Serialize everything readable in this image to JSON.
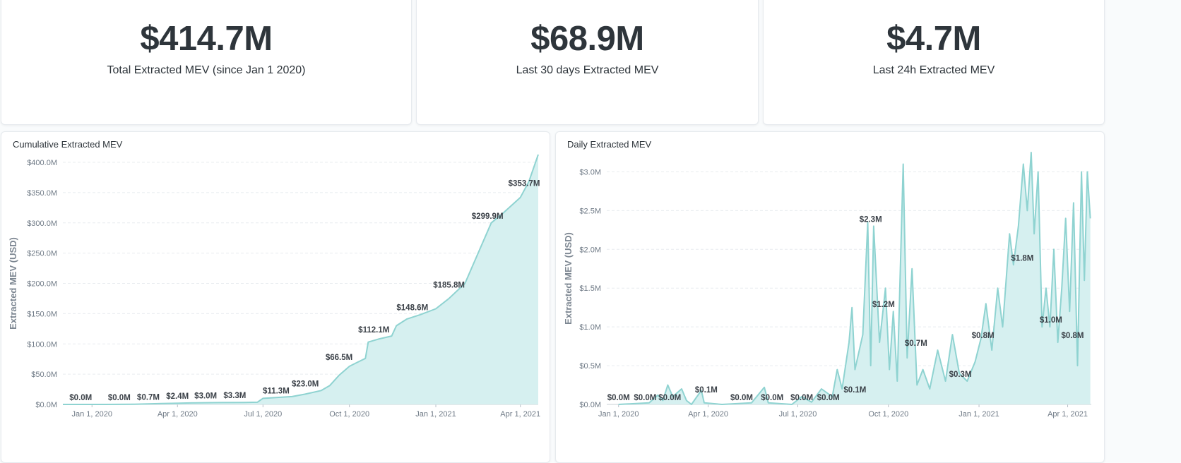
{
  "stats": [
    {
      "value": "$414.7M",
      "label": "Total Extracted MEV (since Jan 1 2020)"
    },
    {
      "value": "$68.9M",
      "label": "Last 30 days Extracted MEV"
    },
    {
      "value": "$4.7M",
      "label": "Last 24h Extracted MEV"
    }
  ],
  "colors": {
    "line": "#8fd3d1",
    "fill": "#d6f0f0",
    "grid": "#e8ecef",
    "text": "#2e353b"
  },
  "chart_data": [
    {
      "type": "area",
      "title": "Cumulative Extracted MEV",
      "xlabel": "",
      "ylabel": "Extracted MEV (USD)",
      "x_ticks": [
        "Jan 1, 2020",
        "Apr 1, 2020",
        "Jul 1, 2020",
        "Oct 1, 2020",
        "Jan 1, 2021",
        "Apr 1, 2021"
      ],
      "y_ticks": [
        "$0.0M",
        "$50.0M",
        "$100.0M",
        "$150.0M",
        "$200.0M",
        "$250.0M",
        "$300.0M",
        "$350.0M",
        "$400.0M"
      ],
      "ylim": [
        0,
        400
      ],
      "grid": true,
      "series": [
        {
          "name": "",
          "points": [
            [
              "2019-12-01",
              0
            ],
            [
              "2020-01-15",
              0.05
            ],
            [
              "2020-02-15",
              0.4
            ],
            [
              "2020-03-15",
              1.5
            ],
            [
              "2020-04-15",
              2.5
            ],
            [
              "2020-05-15",
              3.0
            ],
            [
              "2020-06-10",
              3.2
            ],
            [
              "2020-06-25",
              3.6
            ],
            [
              "2020-07-01",
              10
            ],
            [
              "2020-07-15",
              11.3
            ],
            [
              "2020-08-01",
              13
            ],
            [
              "2020-08-15",
              17
            ],
            [
              "2020-09-01",
              23
            ],
            [
              "2020-09-10",
              31
            ],
            [
              "2020-09-20",
              48
            ],
            [
              "2020-10-01",
              63
            ],
            [
              "2020-10-10",
              70
            ],
            [
              "2020-10-18",
              76
            ],
            [
              "2020-10-21",
              103
            ],
            [
              "2020-11-01",
              108
            ],
            [
              "2020-11-15",
              113
            ],
            [
              "2020-11-20",
              130
            ],
            [
              "2020-12-01",
              141
            ],
            [
              "2020-12-15",
              148
            ],
            [
              "2021-01-01",
              158
            ],
            [
              "2021-01-15",
              175
            ],
            [
              "2021-02-01",
              200
            ],
            [
              "2021-02-15",
              250
            ],
            [
              "2021-03-01",
              300
            ],
            [
              "2021-03-15",
              318
            ],
            [
              "2021-04-01",
              342
            ],
            [
              "2021-04-10",
              368
            ],
            [
              "2021-04-20",
              413
            ]
          ]
        }
      ],
      "data_labels": [
        {
          "x": "2019-12-20",
          "y": 0.0,
          "text": "$0.0M"
        },
        {
          "x": "2020-01-30",
          "y": 0.0,
          "text": "$0.0M"
        },
        {
          "x": "2020-03-01",
          "y": 0.7,
          "text": "$0.7M"
        },
        {
          "x": "2020-04-01",
          "y": 2.4,
          "text": "$2.4M"
        },
        {
          "x": "2020-05-01",
          "y": 3.0,
          "text": "$3.0M"
        },
        {
          "x": "2020-06-01",
          "y": 3.3,
          "text": "$3.3M"
        },
        {
          "x": "2020-07-15",
          "y": 11.3,
          "text": "$11.3M"
        },
        {
          "x": "2020-08-15",
          "y": 23.0,
          "text": "$23.0M"
        },
        {
          "x": "2020-09-20",
          "y": 66.5,
          "text": "$66.5M"
        },
        {
          "x": "2020-10-27",
          "y": 112.1,
          "text": "$112.1M"
        },
        {
          "x": "2020-12-07",
          "y": 148.6,
          "text": "$148.6M"
        },
        {
          "x": "2021-01-15",
          "y": 185.8,
          "text": "$185.8M"
        },
        {
          "x": "2021-02-25",
          "y": 299.9,
          "text": "$299.9M"
        },
        {
          "x": "2021-04-05",
          "y": 353.7,
          "text": "$353.7M"
        }
      ]
    },
    {
      "type": "area",
      "title": "Daily Extracted MEV",
      "xlabel": "",
      "ylabel": "Extracted MEV (USD)",
      "x_ticks": [
        "Jan 1, 2020",
        "Apr 1, 2020",
        "Jul 1, 2020",
        "Oct 1, 2020",
        "Jan 1, 2021",
        "Apr 1, 2021"
      ],
      "y_ticks": [
        "$0.0M",
        "$0.5M",
        "$1.0M",
        "$1.5M",
        "$2.0M",
        "$2.5M",
        "$3.0M"
      ],
      "ylim": [
        0,
        3.25
      ],
      "grid": true,
      "series": [
        {
          "name": "",
          "points": [
            [
              "2020-01-01",
              0.0
            ],
            [
              "2020-02-01",
              0.02
            ],
            [
              "2020-02-10",
              0.12
            ],
            [
              "2020-02-15",
              0.05
            ],
            [
              "2020-02-20",
              0.25
            ],
            [
              "2020-02-25",
              0.1
            ],
            [
              "2020-03-05",
              0.2
            ],
            [
              "2020-03-10",
              0.05
            ],
            [
              "2020-03-15",
              0.0
            ],
            [
              "2020-03-25",
              0.18
            ],
            [
              "2020-03-28",
              0.02
            ],
            [
              "2020-04-15",
              0.0
            ],
            [
              "2020-05-15",
              0.02
            ],
            [
              "2020-05-28",
              0.22
            ],
            [
              "2020-06-01",
              0.02
            ],
            [
              "2020-06-25",
              0.0
            ],
            [
              "2020-07-05",
              0.1
            ],
            [
              "2020-07-15",
              0.03
            ],
            [
              "2020-07-25",
              0.2
            ],
            [
              "2020-08-05",
              0.1
            ],
            [
              "2020-08-10",
              0.45
            ],
            [
              "2020-08-15",
              0.2
            ],
            [
              "2020-08-22",
              0.8
            ],
            [
              "2020-08-25",
              1.25
            ],
            [
              "2020-08-28",
              0.45
            ],
            [
              "2020-09-05",
              0.9
            ],
            [
              "2020-09-10",
              2.35
            ],
            [
              "2020-09-13",
              0.5
            ],
            [
              "2020-09-16",
              2.3
            ],
            [
              "2020-09-22",
              0.8
            ],
            [
              "2020-09-28",
              1.5
            ],
            [
              "2020-10-02",
              0.45
            ],
            [
              "2020-10-06",
              1.2
            ],
            [
              "2020-10-10",
              0.3
            ],
            [
              "2020-10-16",
              3.1
            ],
            [
              "2020-10-20",
              0.6
            ],
            [
              "2020-10-25",
              1.75
            ],
            [
              "2020-10-30",
              0.25
            ],
            [
              "2020-11-05",
              0.45
            ],
            [
              "2020-11-12",
              0.2
            ],
            [
              "2020-11-20",
              0.7
            ],
            [
              "2020-11-28",
              0.3
            ],
            [
              "2020-12-05",
              0.9
            ],
            [
              "2020-12-12",
              0.4
            ],
            [
              "2020-12-20",
              0.3
            ],
            [
              "2020-12-28",
              0.55
            ],
            [
              "2021-01-03",
              0.85
            ],
            [
              "2021-01-08",
              1.3
            ],
            [
              "2021-01-14",
              0.7
            ],
            [
              "2021-01-20",
              1.5
            ],
            [
              "2021-01-25",
              1.0
            ],
            [
              "2021-02-01",
              2.2
            ],
            [
              "2021-02-05",
              1.8
            ],
            [
              "2021-02-10",
              2.3
            ],
            [
              "2021-02-15",
              3.1
            ],
            [
              "2021-02-19",
              2.5
            ],
            [
              "2021-02-23",
              3.25
            ],
            [
              "2021-02-26",
              2.2
            ],
            [
              "2021-03-02",
              3.0
            ],
            [
              "2021-03-06",
              1.0
            ],
            [
              "2021-03-10",
              1.5
            ],
            [
              "2021-03-14",
              1.0
            ],
            [
              "2021-03-18",
              2.0
            ],
            [
              "2021-03-22",
              0.8
            ],
            [
              "2021-03-26",
              1.5
            ],
            [
              "2021-03-30",
              2.4
            ],
            [
              "2021-04-03",
              1.2
            ],
            [
              "2021-04-07",
              2.6
            ],
            [
              "2021-04-11",
              0.5
            ],
            [
              "2021-04-15",
              3.0
            ],
            [
              "2021-04-18",
              1.6
            ],
            [
              "2021-04-21",
              3.0
            ],
            [
              "2021-04-24",
              2.4
            ]
          ]
        }
      ],
      "data_labels": [
        {
          "x": "2020-01-01",
          "y": 0.0,
          "text": "$0.0M"
        },
        {
          "x": "2020-01-28",
          "y": 0.0,
          "text": "$0.0M"
        },
        {
          "x": "2020-02-22",
          "y": 0.0,
          "text": "$0.0M"
        },
        {
          "x": "2020-03-30",
          "y": 0.1,
          "text": "$0.1M"
        },
        {
          "x": "2020-05-05",
          "y": 0.0,
          "text": "$0.0M"
        },
        {
          "x": "2020-06-05",
          "y": 0.0,
          "text": "$0.0M"
        },
        {
          "x": "2020-07-05",
          "y": 0.0,
          "text": "$0.0M"
        },
        {
          "x": "2020-08-01",
          "y": 0.0,
          "text": "$0.0M"
        },
        {
          "x": "2020-08-28",
          "y": 0.1,
          "text": "$0.1M"
        },
        {
          "x": "2020-09-13",
          "y": 2.3,
          "text": "$2.3M"
        },
        {
          "x": "2020-09-26",
          "y": 1.2,
          "text": "$1.2M"
        },
        {
          "x": "2020-10-29",
          "y": 0.7,
          "text": "$0.7M"
        },
        {
          "x": "2020-12-13",
          "y": 0.3,
          "text": "$0.3M"
        },
        {
          "x": "2021-01-05",
          "y": 0.8,
          "text": "$0.8M"
        },
        {
          "x": "2021-02-14",
          "y": 1.8,
          "text": "$1.8M"
        },
        {
          "x": "2021-03-15",
          "y": 1.0,
          "text": "$1.0M"
        },
        {
          "x": "2021-04-06",
          "y": 0.8,
          "text": "$0.8M"
        }
      ]
    }
  ]
}
